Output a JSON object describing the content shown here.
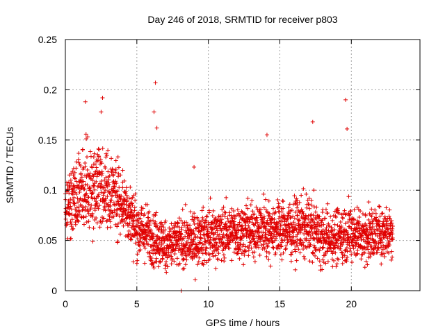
{
  "chart_data": {
    "type": "scatter",
    "title": "Day 246 of 2018, SRMTID for receiver p803",
    "xlabel": "GPS time / hours",
    "ylabel": "SRMTID / TECUs",
    "xlim": [
      0,
      24.8
    ],
    "ylim": [
      0,
      0.25
    ],
    "xticks": [
      0,
      5,
      10,
      15,
      20
    ],
    "xtick_labels": [
      "0",
      "5",
      "10",
      "15",
      "20"
    ],
    "yticks": [
      0,
      0.05,
      0.1,
      0.15,
      0.2,
      0.25
    ],
    "ytick_labels": [
      "0",
      "0.05",
      "0.1",
      "0.15",
      "0.2",
      "0.25"
    ],
    "grid": true,
    "marker": "+",
    "color": "#e00000",
    "data_range_hours": [
      0,
      22.9
    ],
    "envelope": {
      "x": [
        0,
        1,
        2,
        3,
        4,
        5,
        6,
        7,
        8,
        9,
        10,
        11,
        12,
        13,
        14,
        15,
        16,
        17,
        18,
        19,
        20,
        21,
        22,
        22.9
      ],
      "mean": [
        0.085,
        0.095,
        0.105,
        0.1,
        0.09,
        0.062,
        0.055,
        0.045,
        0.048,
        0.05,
        0.055,
        0.057,
        0.058,
        0.06,
        0.062,
        0.063,
        0.062,
        0.064,
        0.052,
        0.055,
        0.058,
        0.055,
        0.057,
        0.062
      ],
      "spread": [
        0.025,
        0.03,
        0.032,
        0.03,
        0.028,
        0.022,
        0.022,
        0.02,
        0.02,
        0.02,
        0.021,
        0.021,
        0.021,
        0.022,
        0.022,
        0.022,
        0.022,
        0.024,
        0.021,
        0.022,
        0.022,
        0.021,
        0.021,
        0.021
      ]
    },
    "outliers": [
      {
        "x": 1.4,
        "y": 0.188
      },
      {
        "x": 2.6,
        "y": 0.192
      },
      {
        "x": 2.5,
        "y": 0.178
      },
      {
        "x": 6.3,
        "y": 0.207
      },
      {
        "x": 6.2,
        "y": 0.178
      },
      {
        "x": 6.4,
        "y": 0.162
      },
      {
        "x": 14.1,
        "y": 0.155
      },
      {
        "x": 17.3,
        "y": 0.168
      },
      {
        "x": 19.6,
        "y": 0.19
      },
      {
        "x": 19.7,
        "y": 0.161
      },
      {
        "x": 9.0,
        "y": 0.123
      },
      {
        "x": 8.1,
        "y": 0.0
      }
    ]
  }
}
